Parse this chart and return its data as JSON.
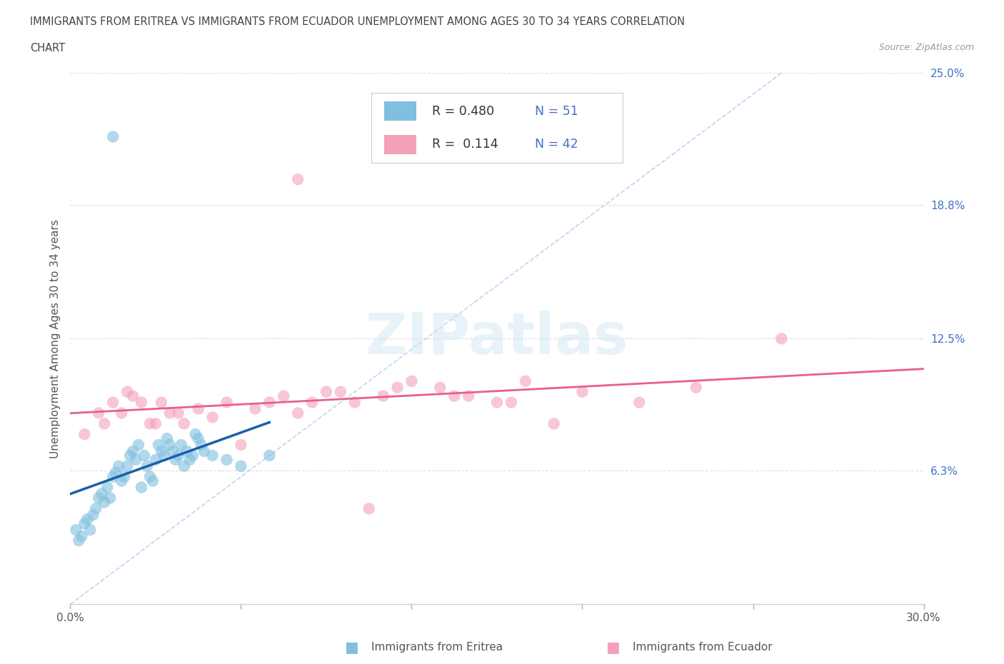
{
  "title_line1": "IMMIGRANTS FROM ERITREA VS IMMIGRANTS FROM ECUADOR UNEMPLOYMENT AMONG AGES 30 TO 34 YEARS CORRELATION",
  "title_line2": "CHART",
  "source": "Source: ZipAtlas.com",
  "ylabel": "Unemployment Among Ages 30 to 34 years",
  "xlim": [
    0.0,
    30.0
  ],
  "ylim": [
    0.0,
    25.0
  ],
  "ytick_right_vals": [
    6.3,
    12.5,
    18.8,
    25.0
  ],
  "ytick_right_labels": [
    "6.3%",
    "12.5%",
    "18.8%",
    "25.0%"
  ],
  "legend_eritrea_R": "0.480",
  "legend_eritrea_N": "51",
  "legend_ecuador_R": "0.114",
  "legend_ecuador_N": "42",
  "color_eritrea": "#7fbfdf",
  "color_ecuador": "#f4a0b8",
  "color_eritrea_line": "#1a5fa8",
  "color_ecuador_line": "#e8608a",
  "color_ref_line": "#aaccee",
  "eritrea_x": [
    0.2,
    0.3,
    0.4,
    0.5,
    0.6,
    0.7,
    0.8,
    0.9,
    1.0,
    1.1,
    1.2,
    1.3,
    1.4,
    1.5,
    1.6,
    1.7,
    1.8,
    1.9,
    2.0,
    2.1,
    2.2,
    2.3,
    2.4,
    2.5,
    2.6,
    2.7,
    2.8,
    2.9,
    3.0,
    3.1,
    3.2,
    3.3,
    3.4,
    3.5,
    3.6,
    3.7,
    3.8,
    3.9,
    4.0,
    4.1,
    4.2,
    4.3,
    4.4,
    4.5,
    4.6,
    4.7,
    5.0,
    5.5,
    6.0,
    7.0,
    1.5
  ],
  "eritrea_y": [
    3.5,
    3.0,
    3.2,
    3.8,
    4.0,
    3.5,
    4.2,
    4.5,
    5.0,
    5.2,
    4.8,
    5.5,
    5.0,
    6.0,
    6.2,
    6.5,
    5.8,
    6.0,
    6.5,
    7.0,
    7.2,
    6.8,
    7.5,
    5.5,
    7.0,
    6.5,
    6.0,
    5.8,
    6.8,
    7.5,
    7.2,
    7.0,
    7.8,
    7.5,
    7.2,
    6.8,
    7.0,
    7.5,
    6.5,
    7.2,
    6.8,
    7.0,
    8.0,
    7.8,
    7.5,
    7.2,
    7.0,
    6.8,
    6.5,
    7.0,
    22.0
  ],
  "ecuador_x": [
    0.5,
    1.0,
    1.5,
    2.0,
    2.5,
    3.0,
    3.5,
    4.0,
    4.5,
    5.0,
    6.0,
    7.0,
    8.0,
    9.0,
    10.0,
    11.0,
    12.0,
    13.0,
    14.0,
    15.0,
    16.0,
    17.0,
    18.0,
    20.0,
    22.0,
    25.0,
    1.2,
    1.8,
    2.2,
    2.8,
    3.2,
    3.8,
    5.5,
    6.5,
    7.5,
    8.5,
    9.5,
    11.5,
    13.5,
    15.5,
    10.5,
    8.0
  ],
  "ecuador_y": [
    8.0,
    9.0,
    9.5,
    10.0,
    9.5,
    8.5,
    9.0,
    8.5,
    9.2,
    8.8,
    7.5,
    9.5,
    9.0,
    10.0,
    9.5,
    9.8,
    10.5,
    10.2,
    9.8,
    9.5,
    10.5,
    8.5,
    10.0,
    9.5,
    10.2,
    12.5,
    8.5,
    9.0,
    9.8,
    8.5,
    9.5,
    9.0,
    9.5,
    9.2,
    9.8,
    9.5,
    10.0,
    10.2,
    9.8,
    9.5,
    4.5,
    20.0
  ]
}
